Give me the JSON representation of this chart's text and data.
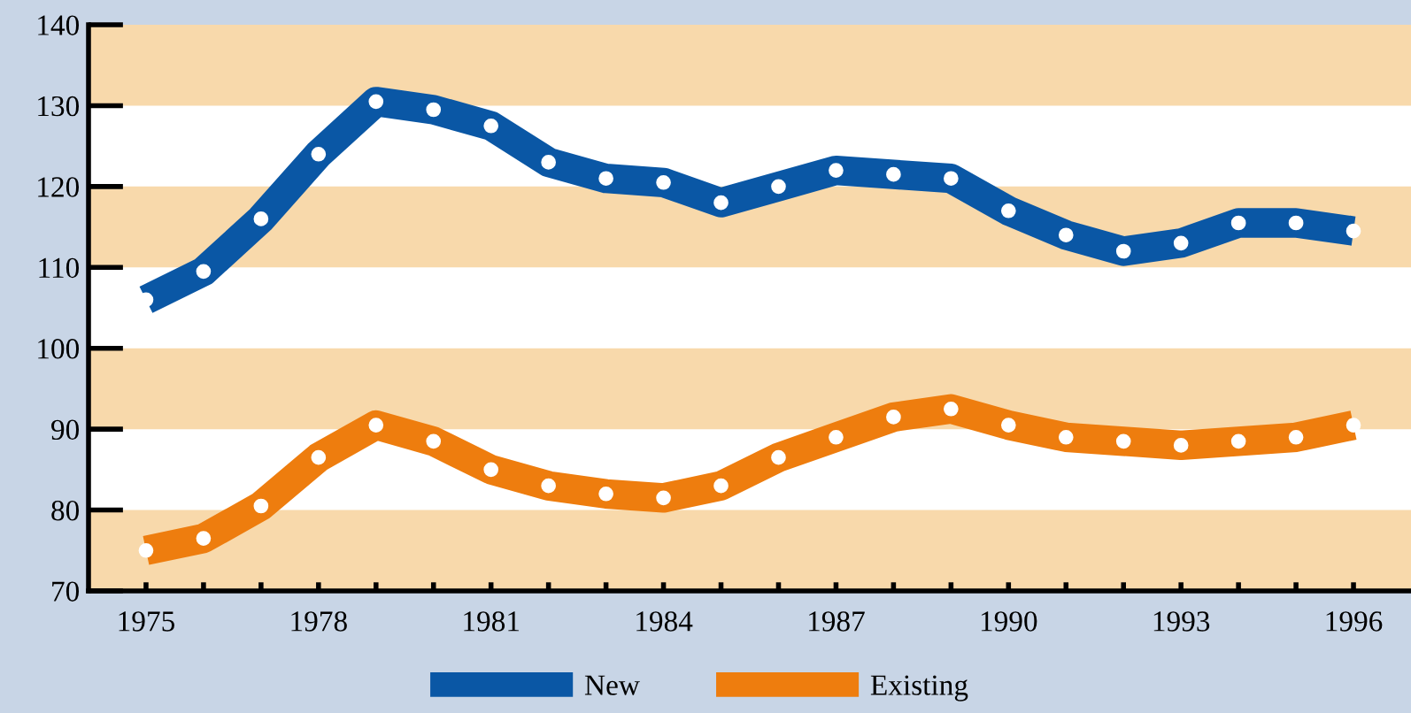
{
  "chart_data": {
    "type": "line",
    "x": [
      1975,
      1976,
      1977,
      1978,
      1979,
      1980,
      1981,
      1982,
      1983,
      1984,
      1985,
      1986,
      1987,
      1988,
      1989,
      1990,
      1991,
      1992,
      1993,
      1994,
      1995,
      1996
    ],
    "series": [
      {
        "name": "New",
        "color": "#0a57a5",
        "values": [
          106,
          109.5,
          116,
          124,
          130.5,
          129.5,
          127.5,
          123,
          121,
          120.5,
          118,
          120,
          122,
          121.5,
          121,
          117,
          114,
          112,
          113,
          115.5,
          115.5,
          114.5
        ]
      },
      {
        "name": "Existing",
        "color": "#ee7d0e",
        "values": [
          75,
          76.5,
          80.5,
          86.5,
          90.5,
          88.5,
          85,
          83,
          82,
          81.5,
          83,
          86.5,
          89,
          91.5,
          92.5,
          90.5,
          89,
          88.5,
          88,
          88.5,
          89,
          90.5
        ]
      }
    ],
    "xlim": [
      1974,
      1997
    ],
    "xticks": [
      1975,
      {
        "value": 1976,
        "label": null
      },
      {
        "value": 1977,
        "label": null
      },
      1978,
      {
        "value": 1979,
        "label": null
      },
      {
        "value": 1980,
        "label": null
      },
      1981,
      {
        "value": 1982,
        "label": null
      },
      {
        "value": 1983,
        "label": null
      },
      1984,
      {
        "value": 1985,
        "label": null
      },
      {
        "value": 1986,
        "label": null
      },
      1987,
      {
        "value": 1988,
        "label": null
      },
      {
        "value": 1989,
        "label": null
      },
      1990,
      {
        "value": 1991,
        "label": null
      },
      {
        "value": 1992,
        "label": null
      },
      1993,
      {
        "value": 1994,
        "label": null
      },
      {
        "value": 1995,
        "label": null
      },
      1996
    ],
    "ylim": [
      70,
      140
    ],
    "yticks": [
      70,
      80,
      90,
      100,
      110,
      120,
      130,
      140
    ],
    "bands": [
      {
        "axis": "y",
        "from": 70,
        "to": 80,
        "color": "#f8d9ab"
      },
      {
        "axis": "y",
        "from": 90,
        "to": 100,
        "color": "#f8d9ab"
      },
      {
        "axis": "y",
        "from": 110,
        "to": 120,
        "color": "#f8d9ab"
      },
      {
        "axis": "y",
        "from": 130,
        "to": 140,
        "color": "#f8d9ab"
      }
    ],
    "marker": "circle",
    "line_style": "solid",
    "grid": false,
    "legend": "bottom"
  }
}
